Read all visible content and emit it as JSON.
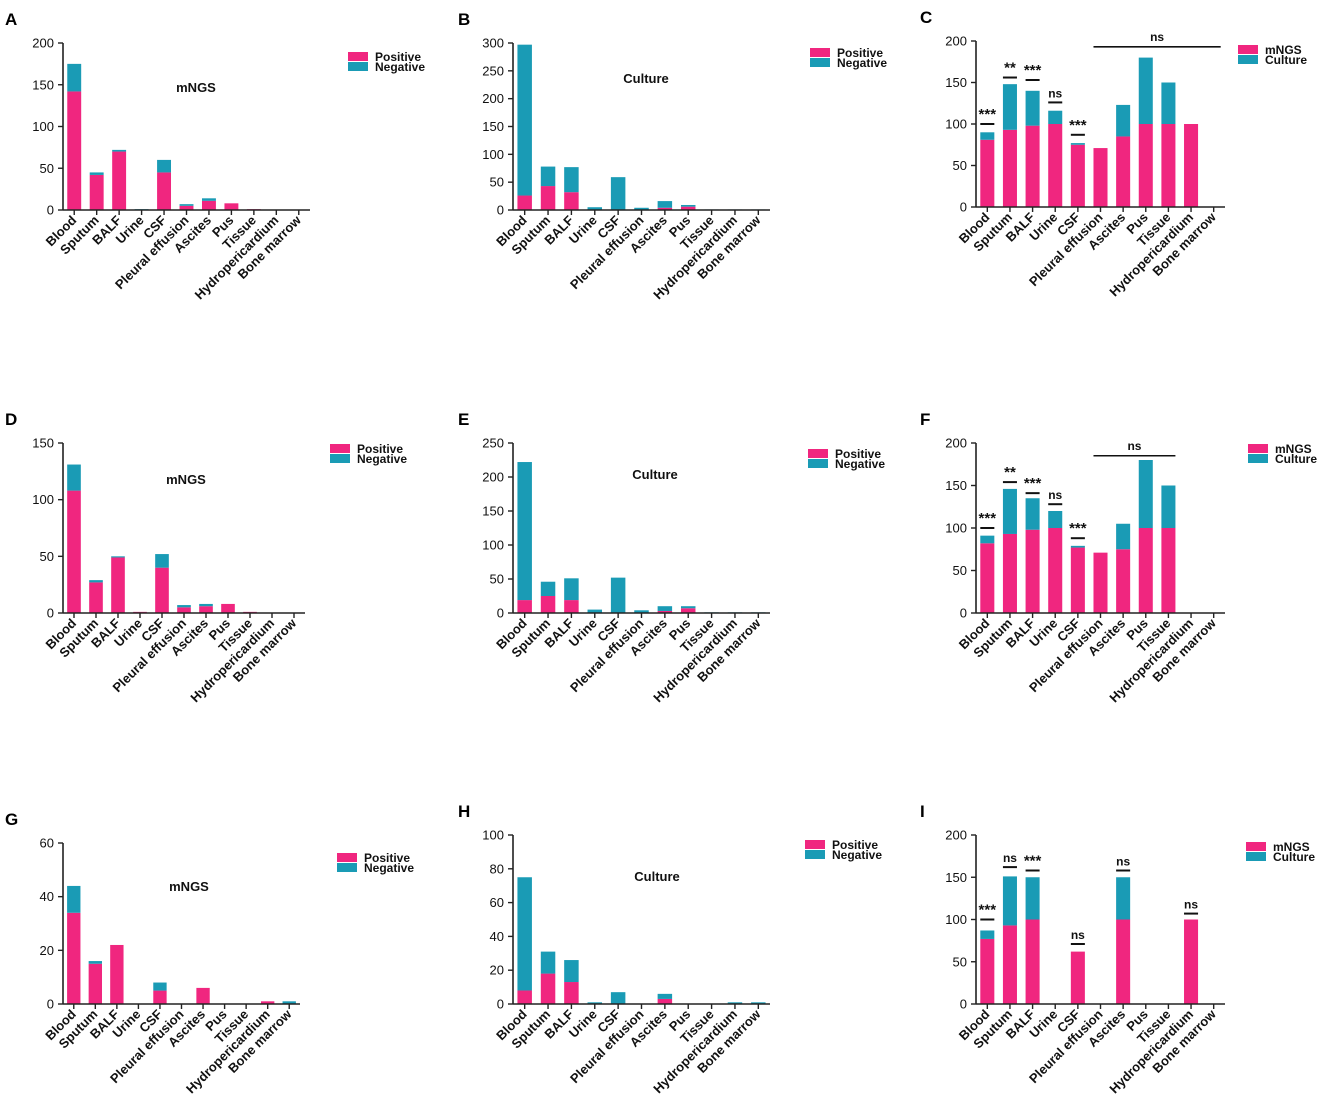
{
  "figure": {
    "series_names": {
      "positive": "Positive",
      "negative": "Negative",
      "mngs": "mNGS",
      "culture": "Culture"
    },
    "colors": {
      "pink": "#f0267f",
      "teal": "#1a9bb5",
      "axis": "#222222"
    }
  },
  "chart_data": [
    {
      "panel": "A",
      "type": "bar",
      "stacked": true,
      "title": "mNGS",
      "categories": [
        "Blood",
        "Sputum",
        "BALF",
        "Urine",
        "CSF",
        "Pleural effusion",
        "Ascites",
        "Pus",
        "Tissue",
        "Hydropericardium",
        "Bone marrow"
      ],
      "series": [
        {
          "name": "Positive",
          "values": [
            142,
            42,
            70,
            0,
            45,
            5,
            11,
            8,
            1,
            0,
            0
          ]
        },
        {
          "name": "Negative",
          "values": [
            33,
            3,
            2,
            1,
            15,
            2,
            3,
            0,
            0,
            0,
            0
          ]
        }
      ],
      "yticks": [
        0,
        50,
        100,
        150,
        200
      ],
      "ylim": [
        0,
        200
      ],
      "legend": [
        "Positive",
        "Negative"
      ]
    },
    {
      "panel": "B",
      "type": "bar",
      "stacked": true,
      "title": "Culture",
      "categories": [
        "Blood",
        "Sputum",
        "BALF",
        "Urine",
        "CSF",
        "Pleural effusion",
        "Ascites",
        "Pus",
        "Tissue",
        "Hydropericardium",
        "Bone marrow"
      ],
      "series": [
        {
          "name": "Positive",
          "values": [
            26,
            43,
            32,
            0,
            0,
            0,
            4,
            6,
            0,
            0,
            0
          ]
        },
        {
          "name": "Negative",
          "values": [
            271,
            35,
            45,
            5,
            59,
            4,
            12,
            3,
            1,
            1,
            1
          ]
        }
      ],
      "yticks": [
        0,
        50,
        100,
        150,
        200,
        250,
        300
      ],
      "ylim": [
        0,
        300
      ],
      "legend": [
        "Positive",
        "Negative"
      ]
    },
    {
      "panel": "C",
      "type": "bar",
      "stacked": true,
      "title": "",
      "categories": [
        "Blood",
        "Sputum",
        "BALF",
        "Urine",
        "CSF",
        "Pleural effusion",
        "Ascites",
        "Pus",
        "Tissue",
        "Hydropericardium",
        "Bone marrow"
      ],
      "series": [
        {
          "name": "mNGS",
          "values": [
            81,
            93,
            98,
            100,
            75,
            71,
            85,
            100,
            100,
            100,
            0
          ]
        },
        {
          "name": "Culture",
          "values": [
            9,
            55,
            42,
            16,
            2,
            0,
            38,
            80,
            50,
            0,
            0
          ]
        }
      ],
      "yticks": [
        0,
        50,
        100,
        150,
        200
      ],
      "ylim": [
        0,
        200
      ],
      "legend": [
        "mNGS",
        "Culture"
      ],
      "annotations": [
        {
          "category": "Blood",
          "label": "***",
          "y": 100
        },
        {
          "category": "Sputum",
          "label": "**",
          "y": 156
        },
        {
          "category": "BALF",
          "label": "***",
          "y": 153
        },
        {
          "category": "Urine",
          "label": "ns",
          "y": 126
        },
        {
          "category": "CSF",
          "label": "***",
          "y": 87
        }
      ],
      "group_annotation": {
        "from": "Pleural effusion",
        "to": "Bone marrow",
        "label": "ns",
        "y": 193
      }
    },
    {
      "panel": "D",
      "type": "bar",
      "stacked": true,
      "title": "mNGS",
      "categories": [
        "Blood",
        "Sputum",
        "BALF",
        "Urine",
        "CSF",
        "Pleural effusion",
        "Ascites",
        "Pus",
        "Tissue",
        "Hydropericardium",
        "Bone marrow"
      ],
      "series": [
        {
          "name": "Positive",
          "values": [
            108,
            27,
            49,
            1,
            40,
            5,
            6,
            8,
            1,
            0,
            0
          ]
        },
        {
          "name": "Negative",
          "values": [
            23,
            2,
            1,
            0,
            12,
            2,
            2,
            0,
            0,
            0,
            0
          ]
        }
      ],
      "yticks": [
        0,
        50,
        100,
        150
      ],
      "ylim": [
        0,
        150
      ],
      "legend": [
        "Positive",
        "Negative"
      ]
    },
    {
      "panel": "E",
      "type": "bar",
      "stacked": true,
      "title": "Culture",
      "categories": [
        "Blood",
        "Sputum",
        "BALF",
        "Urine",
        "CSF",
        "Pleural effusion",
        "Ascites",
        "Pus",
        "Tissue",
        "Hydropericardium",
        "Bone marrow"
      ],
      "series": [
        {
          "name": "Positive",
          "values": [
            19,
            25,
            19,
            0,
            0,
            0,
            3,
            7,
            0,
            0,
            0
          ]
        },
        {
          "name": "Negative",
          "values": [
            203,
            21,
            32,
            5,
            52,
            4,
            7,
            3,
            1,
            1,
            1
          ]
        }
      ],
      "yticks": [
        0,
        50,
        100,
        150,
        200,
        250
      ],
      "ylim": [
        0,
        250
      ],
      "legend": [
        "Positive",
        "Negative"
      ]
    },
    {
      "panel": "F",
      "type": "bar",
      "stacked": true,
      "title": "",
      "categories": [
        "Blood",
        "Sputum",
        "BALF",
        "Urine",
        "CSF",
        "Pleural effusion",
        "Ascites",
        "Pus",
        "Tissue",
        "Hydropericardium",
        "Bone marrow"
      ],
      "series": [
        {
          "name": "mNGS",
          "values": [
            82,
            93,
            98,
            100,
            77,
            71,
            75,
            100,
            100,
            0,
            0
          ]
        },
        {
          "name": "Culture",
          "values": [
            9,
            53,
            37,
            20,
            2,
            0,
            30,
            80,
            50,
            0,
            0
          ]
        }
      ],
      "yticks": [
        0,
        50,
        100,
        150,
        200
      ],
      "ylim": [
        0,
        200
      ],
      "legend": [
        "mNGS",
        "Culture"
      ],
      "annotations": [
        {
          "category": "Blood",
          "label": "***",
          "y": 100
        },
        {
          "category": "Sputum",
          "label": "**",
          "y": 154
        },
        {
          "category": "BALF",
          "label": "***",
          "y": 141
        },
        {
          "category": "Urine",
          "label": "ns",
          "y": 128
        },
        {
          "category": "CSF",
          "label": "***",
          "y": 88
        }
      ],
      "group_annotation": {
        "from": "Pleural effusion",
        "to": "Tissue",
        "label": "ns",
        "y": 185
      }
    },
    {
      "panel": "G",
      "type": "bar",
      "stacked": true,
      "title": "mNGS",
      "categories": [
        "Blood",
        "Sputum",
        "BALF",
        "Urine",
        "CSF",
        "Pleural effusion",
        "Ascites",
        "Pus",
        "Tissue",
        "Hydropericardium",
        "Bone marrow"
      ],
      "series": [
        {
          "name": "Positive",
          "values": [
            34,
            15,
            22,
            0,
            5,
            0,
            6,
            0,
            0,
            1,
            0
          ]
        },
        {
          "name": "Negative",
          "values": [
            10,
            1,
            0,
            0,
            3,
            0,
            0,
            0,
            0,
            0,
            1
          ]
        }
      ],
      "yticks": [
        0,
        20,
        40,
        60
      ],
      "ylim": [
        0,
        60
      ],
      "legend": [
        "Positive",
        "Negative"
      ]
    },
    {
      "panel": "H",
      "type": "bar",
      "stacked": true,
      "title": "Culture",
      "categories": [
        "Blood",
        "Sputum",
        "BALF",
        "Urine",
        "CSF",
        "Pleural effusion",
        "Ascites",
        "Pus",
        "Tissue",
        "Hydropericardium",
        "Bone marrow"
      ],
      "series": [
        {
          "name": "Positive",
          "values": [
            8,
            18,
            13,
            0,
            0,
            0,
            3,
            0,
            0,
            0,
            0
          ]
        },
        {
          "name": "Negative",
          "values": [
            67,
            13,
            13,
            1,
            7,
            0,
            3,
            0,
            0,
            1,
            1
          ]
        }
      ],
      "yticks": [
        0,
        20,
        40,
        60,
        80,
        100
      ],
      "ylim": [
        0,
        100
      ],
      "legend": [
        "Positive",
        "Negative"
      ]
    },
    {
      "panel": "I",
      "type": "bar",
      "stacked": true,
      "title": "",
      "categories": [
        "Blood",
        "Sputum",
        "BALF",
        "Urine",
        "CSF",
        "Pleural effusion",
        "Ascites",
        "Pus",
        "Tissue",
        "Hydropericardium",
        "Bone marrow"
      ],
      "series": [
        {
          "name": "mNGS",
          "values": [
            77,
            93,
            100,
            0,
            62,
            0,
            100,
            0,
            0,
            100,
            0
          ]
        },
        {
          "name": "Culture",
          "values": [
            10,
            58,
            50,
            0,
            0,
            0,
            50,
            0,
            0,
            0,
            0
          ]
        }
      ],
      "yticks": [
        0,
        50,
        100,
        150,
        200
      ],
      "ylim": [
        0,
        200
      ],
      "legend": [
        "mNGS",
        "Culture"
      ],
      "annotations": [
        {
          "category": "Blood",
          "label": "***",
          "y": 100
        },
        {
          "category": "Sputum",
          "label": "ns",
          "y": 162
        },
        {
          "category": "BALF",
          "label": "***",
          "y": 158
        },
        {
          "category": "CSF",
          "label": "ns",
          "y": 71
        },
        {
          "category": "Ascites",
          "label": "ns",
          "y": 158
        },
        {
          "category": "Hydropericardium",
          "label": "ns",
          "y": 107
        }
      ]
    }
  ]
}
